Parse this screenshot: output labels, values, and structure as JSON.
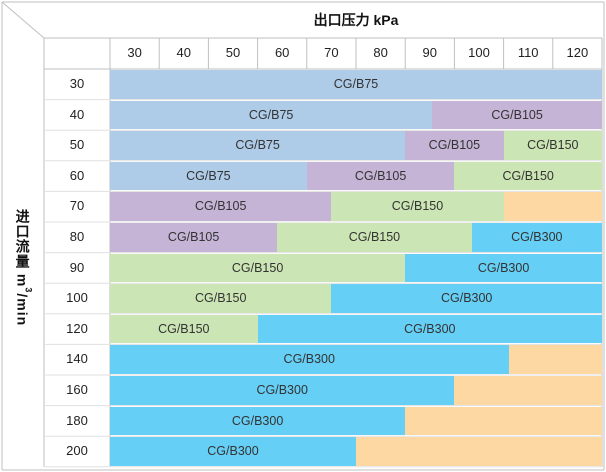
{
  "title": "出口压力 kPa",
  "ylabel": {
    "text": "进口流量 m",
    "sup": "3",
    "suffix": "/min"
  },
  "chart_data": {
    "type": "table",
    "columns": [
      "30",
      "40",
      "50",
      "60",
      "70",
      "80",
      "90",
      "100",
      "110",
      "120"
    ],
    "colors": {
      "CG/B75": "#aecbe8",
      "CG/B105": "#c5b4d6",
      "CG/B150": "#cce5b4",
      "CG/B300": "#66cff5",
      "unused": "#fdd8a2"
    },
    "rows": [
      {
        "flow": "30",
        "segments": [
          {
            "label": "CG/B75",
            "start": 0,
            "end": 10
          }
        ]
      },
      {
        "flow": "40",
        "segments": [
          {
            "label": "CG/B75",
            "start": 0,
            "end": 6.55
          },
          {
            "label": "CG/B105",
            "start": 6.55,
            "end": 10
          }
        ]
      },
      {
        "flow": "50",
        "segments": [
          {
            "label": "CG/B75",
            "start": 0,
            "end": 6.0
          },
          {
            "label": "CG/B105",
            "start": 6.0,
            "end": 8.0
          },
          {
            "label": "CG/B150",
            "start": 8.0,
            "end": 10
          }
        ]
      },
      {
        "flow": "60",
        "segments": [
          {
            "label": "CG/B75",
            "start": 0,
            "end": 4.0
          },
          {
            "label": "CG/B105",
            "start": 4.0,
            "end": 7.0
          },
          {
            "label": "CG/B150",
            "start": 7.0,
            "end": 10
          }
        ]
      },
      {
        "flow": "70",
        "segments": [
          {
            "label": "CG/B105",
            "start": 0,
            "end": 4.5
          },
          {
            "label": "CG/B150",
            "start": 4.5,
            "end": 8.0
          },
          {
            "label": "",
            "start": 8.0,
            "end": 10,
            "color": "unused"
          }
        ]
      },
      {
        "flow": "80",
        "segments": [
          {
            "label": "CG/B105",
            "start": 0,
            "end": 3.4
          },
          {
            "label": "CG/B150",
            "start": 3.4,
            "end": 7.35
          },
          {
            "label": "CG/B300",
            "start": 7.35,
            "end": 10
          }
        ]
      },
      {
        "flow": "90",
        "segments": [
          {
            "label": "CG/B150",
            "start": 0,
            "end": 6.0
          },
          {
            "label": "CG/B300",
            "start": 6.0,
            "end": 10
          }
        ]
      },
      {
        "flow": "100",
        "segments": [
          {
            "label": "CG/B150",
            "start": 0,
            "end": 4.5
          },
          {
            "label": "CG/B300",
            "start": 4.5,
            "end": 10
          }
        ]
      },
      {
        "flow": "120",
        "segments": [
          {
            "label": "CG/B150",
            "start": 0,
            "end": 3.0
          },
          {
            "label": "CG/B300",
            "start": 3.0,
            "end": 10
          }
        ]
      },
      {
        "flow": "140",
        "segments": [
          {
            "label": "CG/B300",
            "start": 0,
            "end": 8.1
          },
          {
            "label": "",
            "start": 8.1,
            "end": 10,
            "color": "unused"
          }
        ]
      },
      {
        "flow": "160",
        "segments": [
          {
            "label": "CG/B300",
            "start": 0,
            "end": 7.0
          },
          {
            "label": "",
            "start": 7.0,
            "end": 10,
            "color": "unused"
          }
        ]
      },
      {
        "flow": "180",
        "segments": [
          {
            "label": "CG/B300",
            "start": 0,
            "end": 6.0
          },
          {
            "label": "",
            "start": 6.0,
            "end": 10,
            "color": "unused"
          }
        ]
      },
      {
        "flow": "200",
        "segments": [
          {
            "label": "CG/B300",
            "start": 0,
            "end": 5.0
          },
          {
            "label": "",
            "start": 5.0,
            "end": 10,
            "color": "unused"
          }
        ]
      }
    ]
  }
}
